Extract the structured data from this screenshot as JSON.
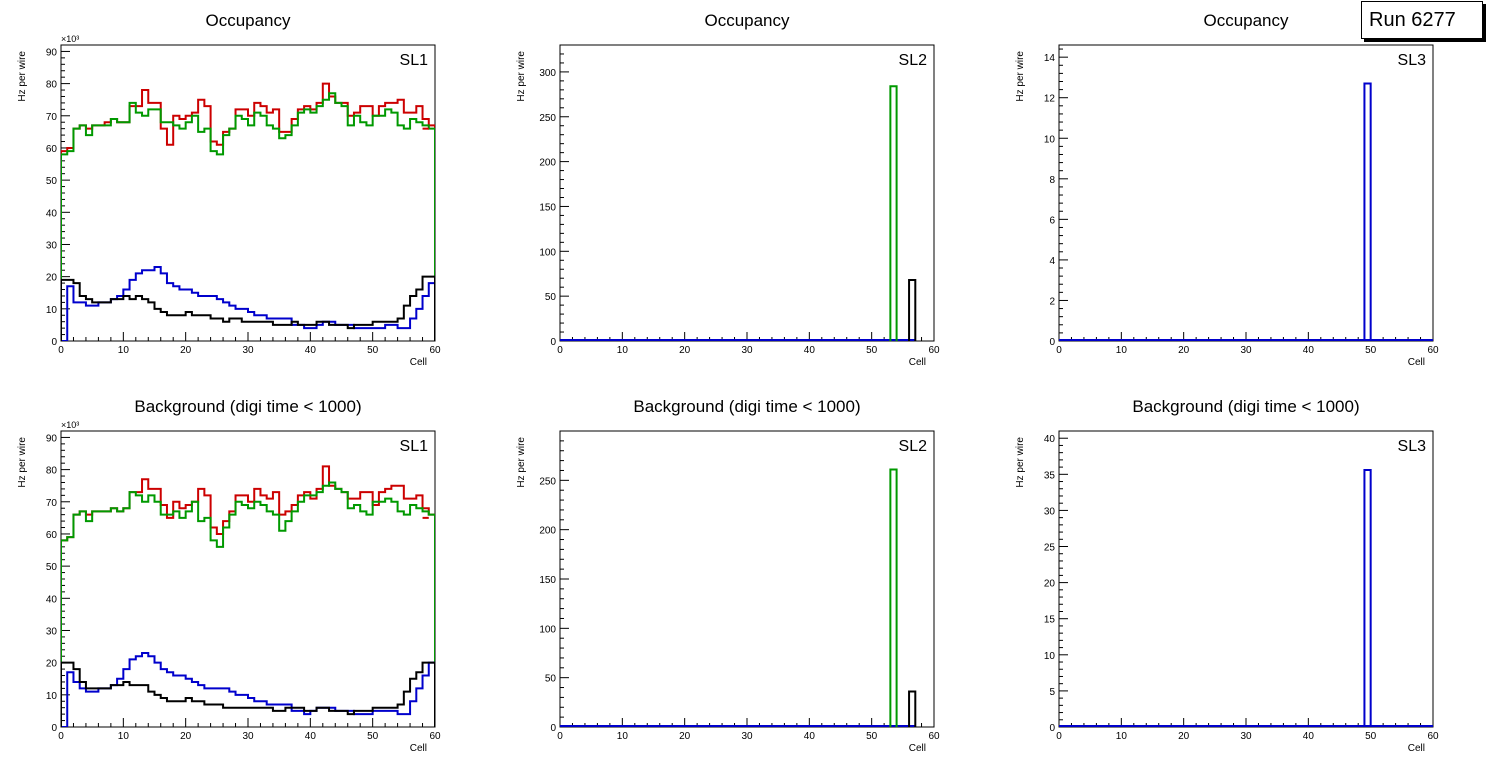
{
  "run_label": "Run 6277",
  "colors": {
    "red": "#cc0000",
    "green": "#009900",
    "blue": "#0000cc",
    "black": "#000000"
  },
  "chart_data": [
    {
      "type": "line",
      "style": "step",
      "title": "Occupancy",
      "panel_label": "SL1",
      "xlabel": "Cell",
      "ylabel": "Hz per wire",
      "xlim": [
        0,
        60
      ],
      "ylim": [
        0,
        92
      ],
      "yticks": [
        0,
        10,
        20,
        30,
        40,
        50,
        60,
        70,
        80,
        90
      ],
      "xticks": [
        0,
        10,
        20,
        30,
        40,
        50,
        60
      ],
      "exponent_label": "×10³",
      "bins": {
        "start": 0,
        "width": 1
      },
      "series": [
        {
          "name": "red",
          "color": "red",
          "values": [
            59,
            60,
            66,
            67,
            66,
            67,
            67,
            68,
            69,
            68,
            68,
            73,
            73,
            78,
            74,
            74,
            66,
            61,
            70,
            69,
            70,
            71,
            75,
            73,
            62,
            61,
            65,
            66,
            72,
            72,
            70,
            74,
            73,
            71,
            72,
            65,
            65,
            69,
            72,
            73,
            72,
            74,
            80,
            76,
            74,
            74,
            70,
            71,
            73,
            73,
            70,
            73,
            74,
            74,
            75,
            71,
            71,
            73,
            69,
            67
          ],
          "overlay": {
            "to": 58,
            "value": 66
          }
        },
        {
          "name": "green",
          "color": "green",
          "values": [
            58,
            59,
            66,
            67,
            64,
            67,
            67,
            67,
            69,
            68,
            68,
            74,
            71,
            70,
            72,
            72,
            68,
            68,
            67,
            66,
            68,
            70,
            65,
            66,
            59,
            58,
            64,
            66,
            70,
            69,
            67,
            71,
            70,
            67,
            66,
            63,
            64,
            67,
            71,
            72,
            71,
            73,
            75,
            77,
            74,
            73,
            67,
            70,
            68,
            67,
            70,
            70,
            72,
            71,
            67,
            66,
            69,
            68,
            67,
            66
          ]
        },
        {
          "name": "blue",
          "color": "blue",
          "values": [
            0,
            17,
            12,
            12,
            11,
            11,
            12,
            12,
            13,
            14,
            16,
            19,
            21,
            22,
            22,
            23,
            21,
            18,
            17,
            16,
            16,
            15,
            14,
            14,
            14,
            13,
            12,
            11,
            10,
            10,
            9,
            8,
            8,
            7,
            7,
            7,
            7,
            5,
            5,
            4,
            4,
            5,
            6,
            6,
            5,
            5,
            5,
            4,
            4,
            4,
            4,
            4,
            5,
            5,
            4,
            4,
            7,
            10,
            14,
            18,
            0
          ]
        },
        {
          "name": "black",
          "color": "black",
          "values": [
            19,
            19,
            18,
            14,
            13,
            12,
            12,
            12,
            13,
            13,
            14,
            13,
            14,
            13,
            12,
            10,
            9,
            8,
            8,
            8,
            9,
            8,
            8,
            8,
            7,
            7,
            6,
            7,
            7,
            6,
            6,
            6,
            6,
            6,
            5,
            5,
            5,
            6,
            5,
            5,
            5,
            6,
            6,
            5,
            5,
            5,
            4,
            5,
            5,
            5,
            6,
            6,
            6,
            6,
            7,
            11,
            14,
            16,
            20,
            20
          ]
        }
      ]
    },
    {
      "type": "bar",
      "style": "step",
      "title": "Occupancy",
      "panel_label": "SL2",
      "xlabel": "Cell",
      "ylabel": "Hz per wire",
      "xlim": [
        0,
        60
      ],
      "ylim": [
        0,
        330
      ],
      "yticks": [
        0,
        50,
        100,
        150,
        200,
        250,
        300
      ],
      "xticks": [
        0,
        10,
        20,
        30,
        40,
        50,
        60
      ],
      "baseline_to": 57,
      "baseline_color": "blue",
      "series": [
        {
          "name": "green",
          "color": "green",
          "bins": [
            [
              53,
              54,
              284
            ]
          ]
        },
        {
          "name": "black",
          "color": "black",
          "bins": [
            [
              56,
              57,
              68
            ]
          ]
        }
      ]
    },
    {
      "type": "bar",
      "style": "step",
      "title": "Occupancy",
      "panel_label": "SL3",
      "xlabel": "Cell",
      "ylabel": "Hz per wire",
      "xlim": [
        0,
        60
      ],
      "ylim": [
        0,
        14.6
      ],
      "yticks": [
        0,
        2,
        4,
        6,
        8,
        10,
        12,
        14
      ],
      "xticks": [
        0,
        10,
        20,
        30,
        40,
        50,
        60
      ],
      "baseline_to": 60,
      "baseline_color": "blue",
      "series": [
        {
          "name": "blue",
          "color": "blue",
          "bins": [
            [
              49,
              50,
              12.7
            ]
          ]
        }
      ]
    },
    {
      "type": "line",
      "style": "step",
      "title": "Background (digi time < 1000)",
      "panel_label": "SL1",
      "xlabel": "Cell",
      "ylabel": "Hz per wire",
      "xlim": [
        0,
        60
      ],
      "ylim": [
        0,
        92
      ],
      "yticks": [
        0,
        10,
        20,
        30,
        40,
        50,
        60,
        70,
        80,
        90
      ],
      "xticks": [
        0,
        10,
        20,
        30,
        40,
        50,
        60
      ],
      "exponent_label": "×10³",
      "bins": {
        "start": 0,
        "width": 1
      },
      "series": [
        {
          "name": "red",
          "color": "red",
          "values": [
            58,
            59,
            66,
            67,
            66,
            67,
            67,
            67,
            68,
            67,
            68,
            73,
            73,
            77,
            74,
            74,
            69,
            65,
            70,
            68,
            69,
            70,
            74,
            72,
            62,
            60,
            64,
            67,
            72,
            72,
            70,
            74,
            72,
            71,
            73,
            66,
            67,
            69,
            72,
            73,
            71,
            74,
            81,
            75,
            74,
            73,
            71,
            71,
            73,
            73,
            69,
            73,
            74,
            75,
            75,
            71,
            71,
            72,
            68,
            66
          ],
          "overlay": {
            "to": 58,
            "value": 65
          }
        },
        {
          "name": "green",
          "color": "green",
          "values": [
            58,
            59,
            66,
            67,
            64,
            67,
            67,
            67,
            68,
            67,
            68,
            73,
            72,
            70,
            72,
            70,
            66,
            66,
            67,
            65,
            67,
            70,
            64,
            65,
            58,
            56,
            62,
            66,
            70,
            69,
            68,
            70,
            69,
            67,
            66,
            61,
            64,
            67,
            70,
            72,
            72,
            73,
            75,
            76,
            74,
            73,
            68,
            69,
            67,
            66,
            70,
            70,
            71,
            70,
            67,
            66,
            69,
            68,
            67,
            66
          ]
        },
        {
          "name": "blue",
          "color": "blue",
          "values": [
            0,
            17,
            14,
            12,
            11,
            11,
            12,
            12,
            13,
            15,
            18,
            21,
            22,
            23,
            22,
            20,
            18,
            17,
            16,
            16,
            15,
            14,
            13,
            12,
            12,
            12,
            12,
            11,
            10,
            10,
            9,
            8,
            8,
            7,
            7,
            7,
            7,
            5,
            5,
            4,
            5,
            6,
            6,
            6,
            5,
            5,
            5,
            4,
            4,
            4,
            5,
            5,
            5,
            5,
            4,
            4,
            8,
            12,
            16,
            20,
            0
          ]
        },
        {
          "name": "black",
          "color": "black",
          "values": [
            20,
            20,
            18,
            14,
            12,
            12,
            12,
            12,
            13,
            13,
            14,
            13,
            13,
            13,
            11,
            10,
            9,
            8,
            8,
            8,
            9,
            8,
            8,
            7,
            7,
            7,
            6,
            6,
            6,
            6,
            6,
            6,
            6,
            6,
            5,
            5,
            6,
            6,
            6,
            5,
            5,
            6,
            6,
            5,
            5,
            5,
            4,
            5,
            5,
            5,
            6,
            6,
            6,
            6,
            7,
            11,
            15,
            17,
            20,
            20
          ]
        }
      ]
    },
    {
      "type": "bar",
      "style": "step",
      "title": "Background (digi time < 1000)",
      "panel_label": "SL2",
      "xlabel": "Cell",
      "ylabel": "Hz per wire",
      "xlim": [
        0,
        60
      ],
      "ylim": [
        0,
        300
      ],
      "yticks": [
        0,
        50,
        100,
        150,
        200,
        250
      ],
      "xticks": [
        0,
        10,
        20,
        30,
        40,
        50,
        60
      ],
      "baseline_to": 57,
      "baseline_color": "blue",
      "series": [
        {
          "name": "green",
          "color": "green",
          "bins": [
            [
              53,
              54,
              261
            ]
          ]
        },
        {
          "name": "black",
          "color": "black",
          "bins": [
            [
              56,
              57,
              36
            ]
          ]
        }
      ]
    },
    {
      "type": "bar",
      "style": "step",
      "title": "Background (digi time < 1000)",
      "panel_label": "SL3",
      "xlabel": "Cell",
      "ylabel": "Hz per wire",
      "xlim": [
        0,
        60
      ],
      "ylim": [
        0,
        41
      ],
      "yticks": [
        0,
        5,
        10,
        15,
        20,
        25,
        30,
        35,
        40
      ],
      "xticks": [
        0,
        10,
        20,
        30,
        40,
        50,
        60
      ],
      "baseline_to": 60,
      "baseline_color": "blue",
      "series": [
        {
          "name": "blue",
          "color": "blue",
          "bins": [
            [
              49,
              50,
              35.6
            ]
          ]
        }
      ]
    }
  ]
}
